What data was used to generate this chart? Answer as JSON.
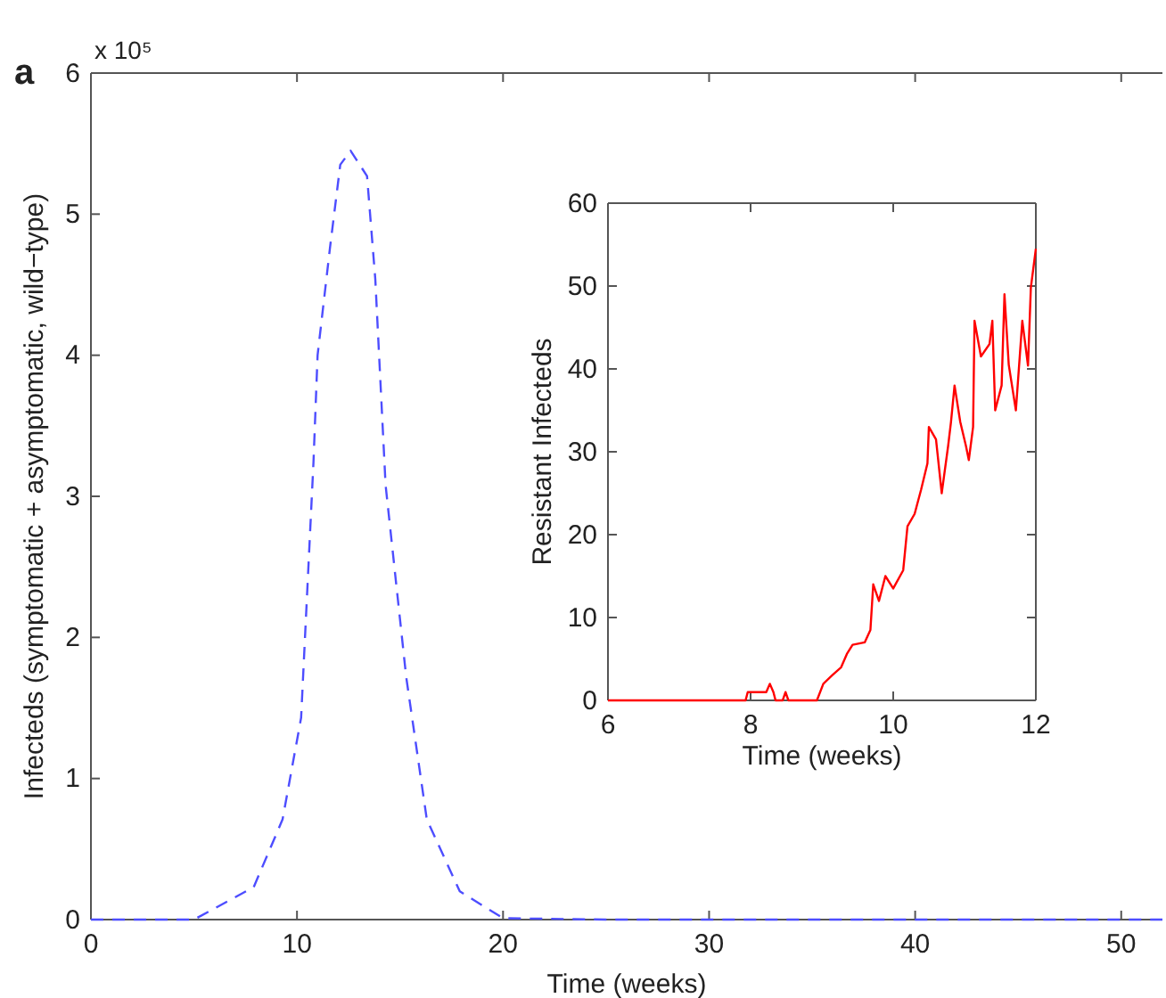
{
  "chart_data": [
    {
      "type": "line",
      "title": "a",
      "annotations": [
        "x 10⁵"
      ],
      "xlabel": "Time (weeks)",
      "ylabel": "Infecteds (symptomatic + asymptomatic, wild−type)",
      "xlim": [
        0,
        52
      ],
      "xticks": [
        0,
        10,
        20,
        30,
        40,
        50
      ],
      "ylim": [
        0,
        6
      ],
      "yticks": [
        0,
        1,
        2,
        3,
        4,
        5,
        6
      ],
      "line_style": "dashed",
      "series": [
        {
          "color": "#4d4dff",
          "x": [
            0,
            5,
            7.9,
            9.3,
            10.2,
            10.8,
            11.0,
            11.6,
            12.1,
            12.6,
            13.4,
            13.8,
            14.3,
            15.3,
            16.3,
            17.9,
            20,
            25,
            30,
            40,
            52
          ],
          "values": [
            0,
            0,
            0.23,
            0.71,
            1.43,
            3.24,
            4.0,
            4.76,
            5.35,
            5.45,
            5.27,
            4.54,
            3.08,
            1.72,
            0.71,
            0.2,
            0.01,
            0,
            0,
            0,
            0
          ]
        }
      ]
    },
    {
      "type": "line",
      "xlabel": "Time (weeks)",
      "ylabel": "Resistant Infecteds",
      "xlim": [
        6,
        12
      ],
      "xticks": [
        6,
        8,
        10,
        12
      ],
      "ylim": [
        0,
        60
      ],
      "yticks": [
        0,
        10,
        20,
        30,
        40,
        50,
        60
      ],
      "line_style": "solid",
      "series": [
        {
          "color": "#ff0000",
          "x": [
            6,
            7.93,
            7.96,
            8.22,
            8.27,
            8.32,
            8.35,
            8.45,
            8.49,
            8.53,
            8.93,
            9.02,
            9.14,
            9.27,
            9.35,
            9.43,
            9.6,
            9.68,
            9.72,
            9.8,
            9.89,
            10.0,
            10.14,
            10.2,
            10.3,
            10.39,
            10.48,
            10.5,
            10.6,
            10.68,
            10.77,
            10.81,
            10.86,
            10.94,
            11.02,
            11.06,
            11.12,
            11.14,
            11.23,
            11.35,
            11.39,
            11.43,
            11.52,
            11.56,
            11.62,
            11.72,
            11.81,
            11.89,
            11.93,
            12
          ],
          "values": [
            0,
            0,
            1,
            1,
            2,
            1,
            0,
            0,
            1,
            0,
            0,
            2,
            3,
            4,
            5.6,
            6.7,
            7,
            8.5,
            14,
            12,
            15,
            13.5,
            15.7,
            21,
            22.5,
            25.4,
            28.6,
            33,
            31.5,
            25,
            30.7,
            33.6,
            38,
            33.6,
            30.7,
            29,
            33,
            45.8,
            41.5,
            43,
            45.8,
            35,
            38,
            49,
            40.5,
            35,
            45.8,
            40.4,
            49.8,
            54.5
          ]
        }
      ]
    }
  ]
}
